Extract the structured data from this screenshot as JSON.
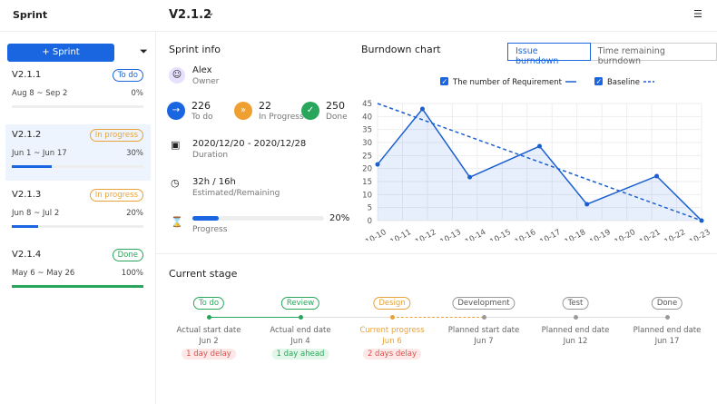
{
  "header": {
    "title": "Sprint",
    "version": "V2.1.2"
  },
  "sidebar": {
    "button": "Sprint",
    "sprints": [
      {
        "name": "V2.1.1",
        "status": "To do",
        "dates": "Aug 8 ~ Sep 2",
        "percent": "0%"
      },
      {
        "name": "V2.1.2",
        "status": "In progress",
        "dates": "Jun 1 ~ Jun 17",
        "percent": "30%"
      },
      {
        "name": "V2.1.3",
        "status": "In progress",
        "dates": "Jun 8 ~ Jul 2",
        "percent": "20%"
      },
      {
        "name": "V2.1.4",
        "status": "Done",
        "dates": "May 6 ~ May 26",
        "percent": "100%"
      }
    ]
  },
  "sprint_info": {
    "title": "Sprint info",
    "owner": {
      "name": "Alex",
      "role": "Owner"
    },
    "stats": [
      {
        "value": "226",
        "label": "To do"
      },
      {
        "value": "22",
        "label": "In Progress"
      },
      {
        "value": "250",
        "label": "Done"
      }
    ],
    "duration": {
      "value": "2020/12/20 - 2020/12/28",
      "label": "Duration"
    },
    "estimate": {
      "value": "32h / 16h",
      "label": "Estimated/Remaining"
    },
    "progress": {
      "value": "20%",
      "label": "Progress"
    }
  },
  "chart_data": {
    "type": "line",
    "title": "Burndown chart",
    "tabs": [
      "Issue burndown",
      "Time remaining burndown"
    ],
    "xlim": [
      0,
      13
    ],
    "xticks": [
      {
        "value": 0,
        "label": "10-10"
      },
      {
        "value": 1,
        "label": "10-11"
      },
      {
        "value": 2,
        "label": "10-12"
      },
      {
        "value": 3,
        "label": "10-13"
      },
      {
        "value": 4,
        "label": "10-14"
      },
      {
        "value": 5,
        "label": "10-15"
      },
      {
        "value": 6,
        "label": "10-16"
      },
      {
        "value": 7,
        "label": "10-17"
      },
      {
        "value": 8,
        "label": "10-18"
      },
      {
        "value": 9,
        "label": "10-19"
      },
      {
        "value": 10,
        "label": "10-20"
      },
      {
        "value": 11,
        "label": "10-21"
      },
      {
        "value": 12,
        "label": "10-22"
      },
      {
        "value": 13,
        "label": "10-23"
      }
    ],
    "ylim": [
      0,
      45
    ],
    "yticks": [
      0,
      5,
      10,
      15,
      20,
      25,
      30,
      35,
      40,
      45
    ],
    "grid": true,
    "series": [
      {
        "name": "The number of Requirement",
        "color": "#1a5fd0",
        "x": [
          0,
          1.8,
          3.7,
          6.5,
          8.4,
          11.2,
          13
        ],
        "values": [
          21.6,
          42.9,
          16.7,
          28.6,
          6.3,
          17.1,
          0
        ]
      },
      {
        "name": "Baseline",
        "color": "#1a5fd0",
        "dashed": true,
        "x": [
          0,
          13
        ],
        "values": [
          45,
          0
        ]
      }
    ]
  },
  "current_stage": {
    "title": "Current stage",
    "stages": [
      {
        "label": "To do",
        "caption": "Actual start date",
        "date": "Jun 2",
        "badge": "1 day delay",
        "state": "done"
      },
      {
        "label": "Review",
        "caption": "Actual end date",
        "date": "Jun 4",
        "badge": "1 day ahead",
        "state": "done"
      },
      {
        "label": "Design",
        "caption": "Current progress",
        "date": "Jun 6",
        "badge": "2 days delay",
        "state": "current"
      },
      {
        "label": "Development",
        "caption": "Planned start date",
        "date": "Jun 7",
        "state": "todo"
      },
      {
        "label": "Test",
        "caption": "Planned end date",
        "date": "Jun 12",
        "state": "todo"
      },
      {
        "label": "Done",
        "caption": "Planned end date",
        "date": "Jun 17",
        "state": "todo"
      }
    ]
  }
}
